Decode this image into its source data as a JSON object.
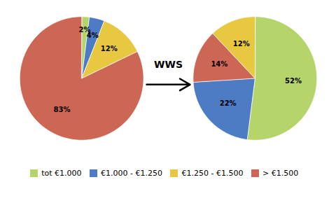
{
  "chart_data": [
    {
      "type": "pie",
      "categories": [
        "tot €1.000",
        "€1.000 - €1.250",
        "€1.250 - €1.500",
        "> €1.500"
      ],
      "values": [
        2,
        4,
        12,
        83
      ],
      "value_labels": [
        "2%",
        "4%",
        "12%",
        "83%"
      ],
      "colors": [
        "#b5d46a",
        "#4d7bc4",
        "#e8c840",
        "#cc6655"
      ],
      "data_labels": true,
      "legend": "bottom",
      "annotations": [
        "WWS"
      ]
    },
    {
      "type": "pie",
      "categories": [
        "tot €1.000",
        "€1.000 - €1.250",
        "> €1.500",
        "€1.250 - €1.500"
      ],
      "values": [
        52,
        22,
        14,
        12
      ],
      "value_labels": [
        "52%",
        "22%",
        "14%",
        "12%"
      ],
      "colors": [
        "#b5d46a",
        "#4d7bc4",
        "#cc6655",
        "#e8c840"
      ],
      "data_labels": true
    }
  ]
}
